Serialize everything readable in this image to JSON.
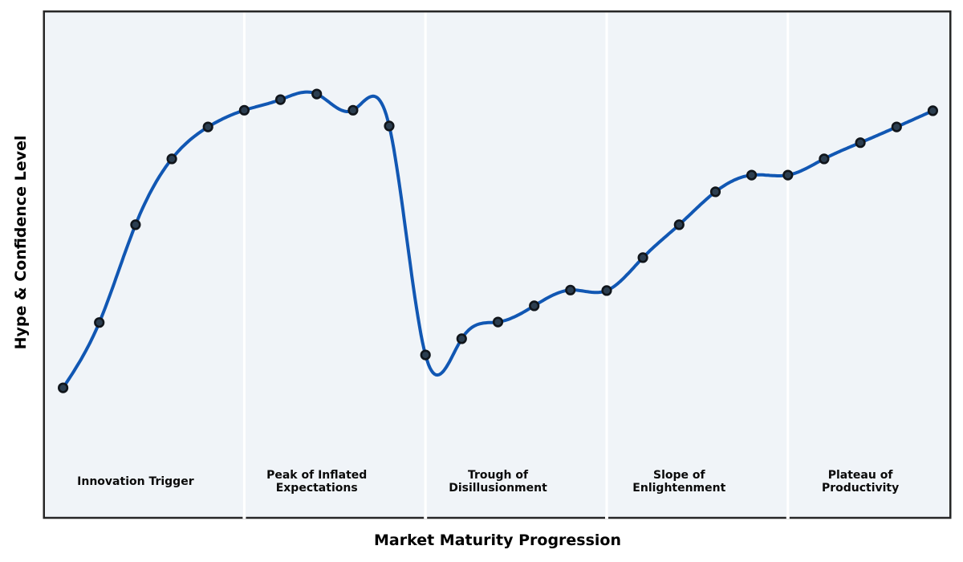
{
  "chart_data": {
    "type": "line",
    "xlabel": "Market Maturity Progression",
    "ylabel": "Hype & Confidence Level",
    "x": [
      1,
      2,
      3,
      4,
      5,
      6,
      7,
      8,
      9,
      10,
      11,
      12,
      13,
      14,
      15,
      16,
      17,
      18,
      19,
      20,
      21,
      22,
      23,
      24,
      25
    ],
    "series": [
      {
        "name": "hype-confidence-curve",
        "values": [
          25.5,
          38.4,
          57.7,
          70.7,
          77.0,
          80.3,
          82.4,
          83.5,
          80.3,
          77.2,
          32.0,
          35.2,
          38.5,
          41.7,
          44.8,
          44.7,
          51.2,
          57.7,
          64.2,
          67.5,
          67.5,
          70.7,
          73.9,
          77.0,
          80.2
        ]
      }
    ],
    "xlim": [
      0.5,
      25.5
    ],
    "ylim": [
      0,
      100
    ],
    "grid": false,
    "legend": false,
    "axis_ticks": "none",
    "interpolation": "cubic-spline",
    "phases": [
      {
        "label": "Innovation Trigger",
        "label_x": 3
      },
      {
        "label": "Peak of Inflated\nExpectations",
        "label_x": 8
      },
      {
        "label": "Trough of\nDisillusionment",
        "label_x": 13
      },
      {
        "label": "Slope of\nEnlightenment",
        "label_x": 18
      },
      {
        "label": "Plateau of\nProductivity",
        "label_x": 23
      }
    ],
    "phase_label_y_value": 7,
    "phase_boundaries_x": [
      6,
      11,
      16,
      21
    ],
    "colors": {
      "line": "#1157b3",
      "marker_fill": "#2c3e50",
      "marker_edge": "#10151b",
      "plot_background": "#f0f4f8",
      "figure_background": "#ffffff",
      "separator": "#ffffff",
      "border": "#262626",
      "text": "#000000"
    }
  }
}
